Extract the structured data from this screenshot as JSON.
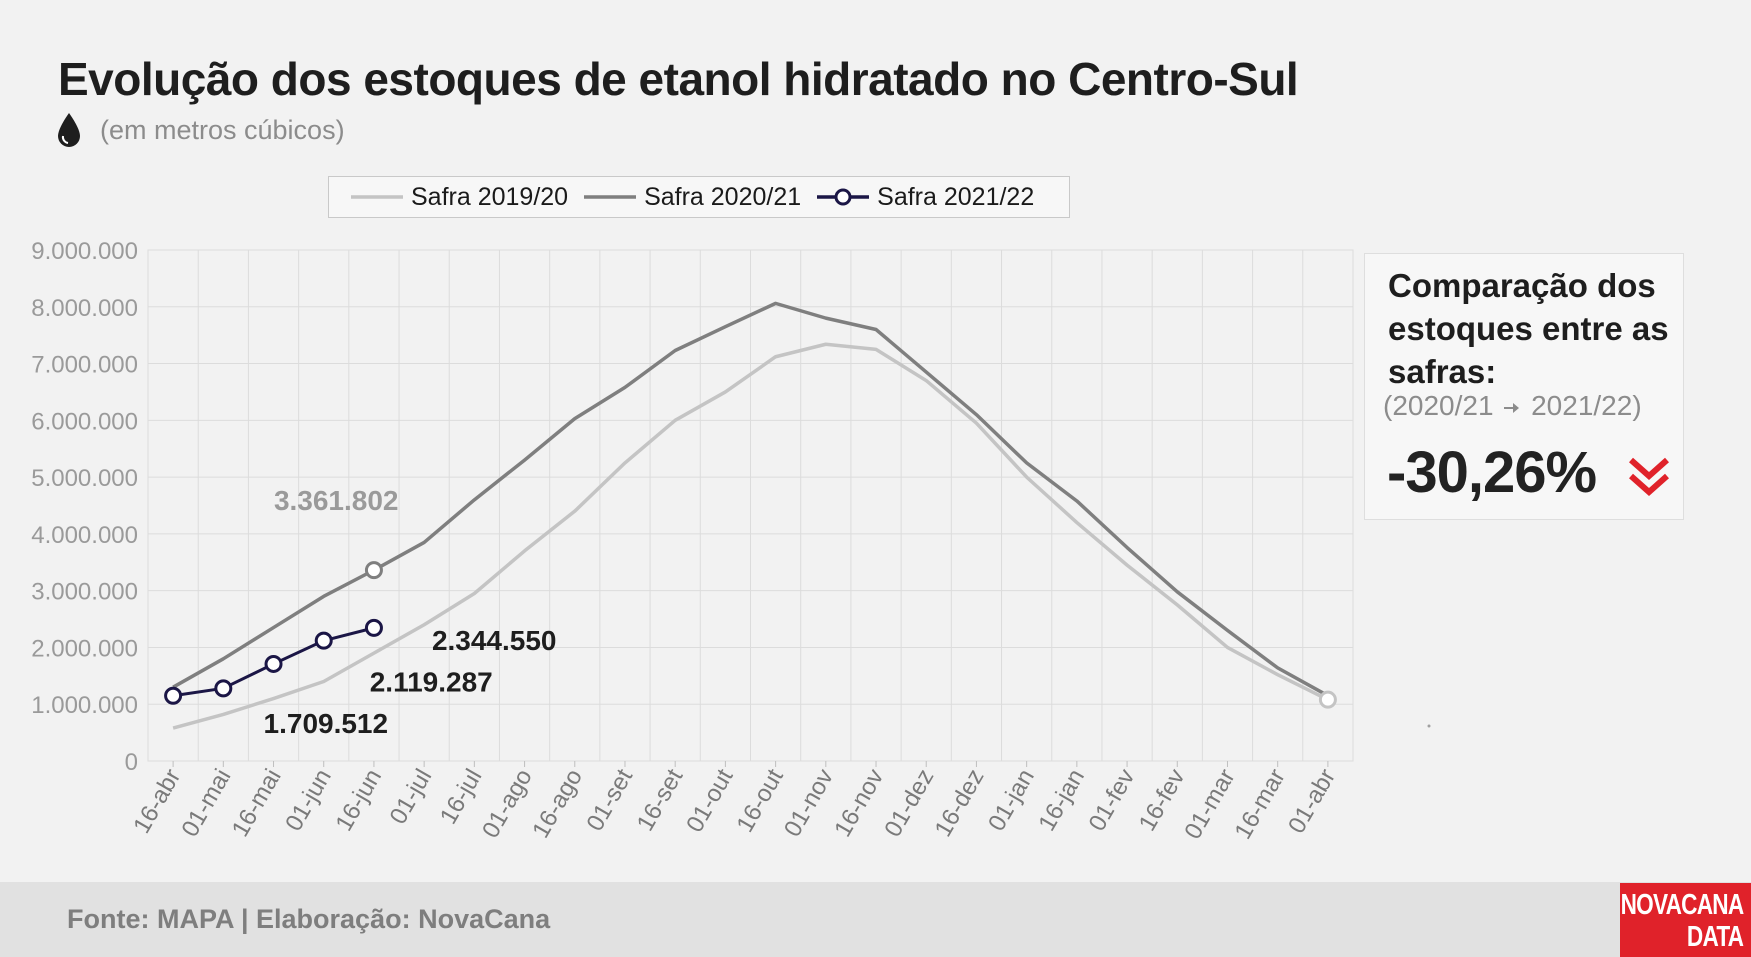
{
  "header": {
    "title": "Evolução dos estoques de etanol hidratado no Centro-Sul",
    "subtitle": "(em metros cúbicos)",
    "drop_icon": "drop-icon"
  },
  "panel": {
    "title": "Comparação dos estoques entre as safras:",
    "sub_from": "(2020/21",
    "sub_to": "2021/22)",
    "value": "-30,26%",
    "trend_icon": "double-chevron-down-icon",
    "trend_color": "#e0222a"
  },
  "footer": {
    "source": "Fonte: MAPA  | Elaboração: NovaCana",
    "logo_line1": "NOVACANA",
    "logo_line2": "DATA"
  },
  "chart_data": {
    "type": "line",
    "categories": [
      "16-abr",
      "01-mai",
      "16-mai",
      "01-jun",
      "16-jun",
      "01-jul",
      "16-jul",
      "01-ago",
      "16-ago",
      "01-set",
      "16-set",
      "01-out",
      "16-out",
      "01-nov",
      "16-nov",
      "01-dez",
      "16-dez",
      "01-jan",
      "16-jan",
      "01-fev",
      "16-fev",
      "01-mar",
      "16-mar",
      "01-abr"
    ],
    "ylim": [
      0,
      9000000
    ],
    "yticks": [
      0,
      1000000,
      2000000,
      3000000,
      4000000,
      5000000,
      6000000,
      7000000,
      8000000,
      9000000
    ],
    "ytick_labels": [
      "0",
      "1.000.000",
      "2.000.000",
      "3.000.000",
      "4.000.000",
      "5.000.000",
      "6.000.000",
      "7.000.000",
      "8.000.000",
      "9.000.000"
    ],
    "grid": true,
    "legend_position": "top",
    "series": [
      {
        "name": "Safra 2019/20",
        "color": "#c4c4c4",
        "markers": false,
        "values": [
          580000,
          820000,
          1100000,
          1400000,
          1900000,
          2400000,
          2950000,
          3700000,
          4400000,
          5250000,
          6000000,
          6500000,
          7120000,
          7340000,
          7250000,
          6700000,
          5950000,
          5000000,
          4200000,
          3450000,
          2750000,
          2000000,
          1520000,
          1080000
        ]
      },
      {
        "name": "Safra 2020/21",
        "color": "#7f7f7f",
        "markers": false,
        "values": [
          1300000,
          1800000,
          2350000,
          2900000,
          3361802,
          3850000,
          4600000,
          5300000,
          6030000,
          6580000,
          7230000,
          7650000,
          8060000,
          7800000,
          7600000,
          6850000,
          6100000,
          5250000,
          4580000,
          3760000,
          2980000,
          2300000,
          1640000,
          1150000
        ]
      },
      {
        "name": "Safra 2021/22",
        "color": "#1b1646",
        "markers": true,
        "values": [
          1150000,
          1280000,
          1709512,
          2119287,
          2344550,
          null,
          null,
          null,
          null,
          null,
          null,
          null,
          null,
          null,
          null,
          null,
          null,
          null,
          null,
          null,
          null,
          null,
          null,
          null
        ]
      }
    ],
    "annotations": [
      {
        "text": "3.361.802",
        "series": "Safra 2020/21",
        "x": "16-jun",
        "y": 3361802,
        "color": "#9a9a9a"
      },
      {
        "text": "2.344.550",
        "series": "Safra 2021/22",
        "x": "16-jun",
        "y": 2344550,
        "color": "#1e1e1e"
      },
      {
        "text": "2.119.287",
        "series": "Safra 2021/22",
        "x": "01-jun",
        "y": 2119287,
        "color": "#1e1e1e"
      },
      {
        "text": "1.709.512",
        "series": "Safra 2021/22",
        "x": "16-mai",
        "y": 1709512,
        "color": "#1e1e1e"
      }
    ]
  }
}
